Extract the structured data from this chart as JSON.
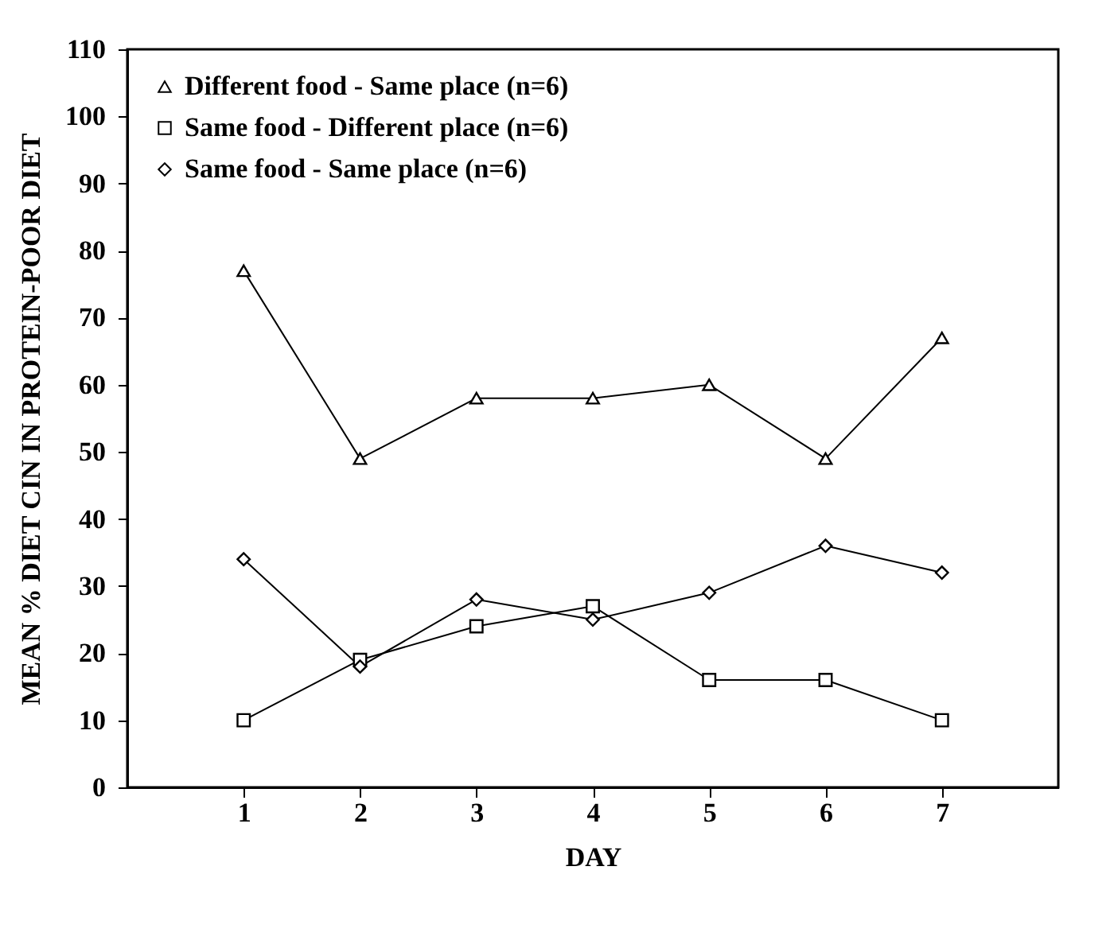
{
  "chart_data": {
    "type": "line",
    "xlabel": "DAY",
    "ylabel": "MEAN % DIET CIN IN PROTEIN-POOR DIET",
    "x": [
      1,
      2,
      3,
      4,
      5,
      6,
      7
    ],
    "series": [
      {
        "name": "Different food - Same place (n=6)",
        "color": "#000000",
        "marker": "triangle",
        "values": [
          77,
          49,
          58,
          58,
          60,
          49,
          67
        ]
      },
      {
        "name": "Same food - Different place (n=6)",
        "color": "#000000",
        "marker": "square",
        "values": [
          10,
          19,
          24,
          27,
          16,
          16,
          10
        ]
      },
      {
        "name": "Same food - Same place (n=6)",
        "color": "#000000",
        "marker": "diamond",
        "values": [
          34,
          18,
          28,
          25,
          29,
          36,
          32
        ]
      }
    ],
    "xlim": [
      0,
      8
    ],
    "xticks": [
      1,
      2,
      3,
      4,
      5,
      6,
      7
    ],
    "ylim": [
      0,
      110
    ],
    "yticks": [
      0,
      10,
      20,
      30,
      40,
      50,
      60,
      70,
      80,
      90,
      100,
      110
    ],
    "grid": false,
    "legend": "top left",
    "line_style": "solid"
  }
}
